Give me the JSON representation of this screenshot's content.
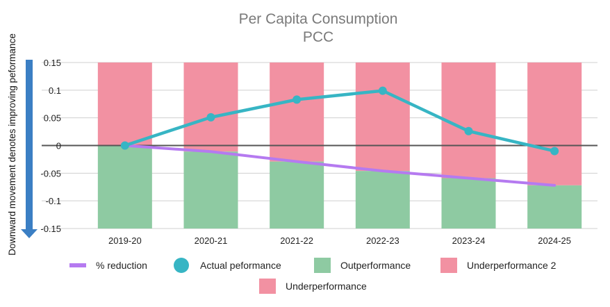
{
  "chart_data": {
    "type": "bar+line",
    "title": "Per Capita Consumption",
    "subtitle": "PCC",
    "side_label": "Downward movement denotes improving peformance",
    "categories": [
      "2019-20",
      "2020-21",
      "2021-22",
      "2022-23",
      "2023-24",
      "2024-25"
    ],
    "ylim": [
      -0.15,
      0.15
    ],
    "yticks": [
      0.15,
      0.1,
      0.05,
      0,
      -0.05,
      -0.1,
      -0.15
    ],
    "ytick_labels": [
      "0.15",
      "0.1",
      "0.05",
      "0",
      "-0.05",
      "-0.1",
      "-0.15"
    ],
    "grid": true,
    "series": [
      {
        "name": "% reduction",
        "type": "line",
        "color": "#b57af0",
        "values": [
          0,
          -0.011,
          -0.029,
          -0.046,
          -0.059,
          -0.072
        ]
      },
      {
        "name": "Actual peformance",
        "type": "line+marker",
        "color": "#37b5c4",
        "values": [
          0,
          0.051,
          0.083,
          0.099,
          0.026,
          -0.01
        ]
      },
      {
        "name": "Outperformance",
        "type": "stacked-bar",
        "color": "#8ecaa2",
        "values": [
          -0.15,
          -0.139,
          -0.121,
          -0.104,
          -0.091,
          -0.078
        ]
      },
      {
        "name": "Underperformance 2",
        "type": "stacked-bar",
        "color": "#f291a2",
        "values": [
          0.15,
          0.139,
          0.121,
          0.104,
          0.091,
          0.078
        ]
      },
      {
        "name": "Underperformance",
        "type": "stacked-bar",
        "color": "#f291a2",
        "values": [
          0.15,
          0.15,
          0.15,
          0.15,
          0.15,
          0.15
        ]
      }
    ],
    "legend": [
      "% reduction",
      "Actual peformance",
      "Outperformance",
      "Underperformance 2",
      "Underperformance"
    ],
    "legend_position": "bottom"
  }
}
